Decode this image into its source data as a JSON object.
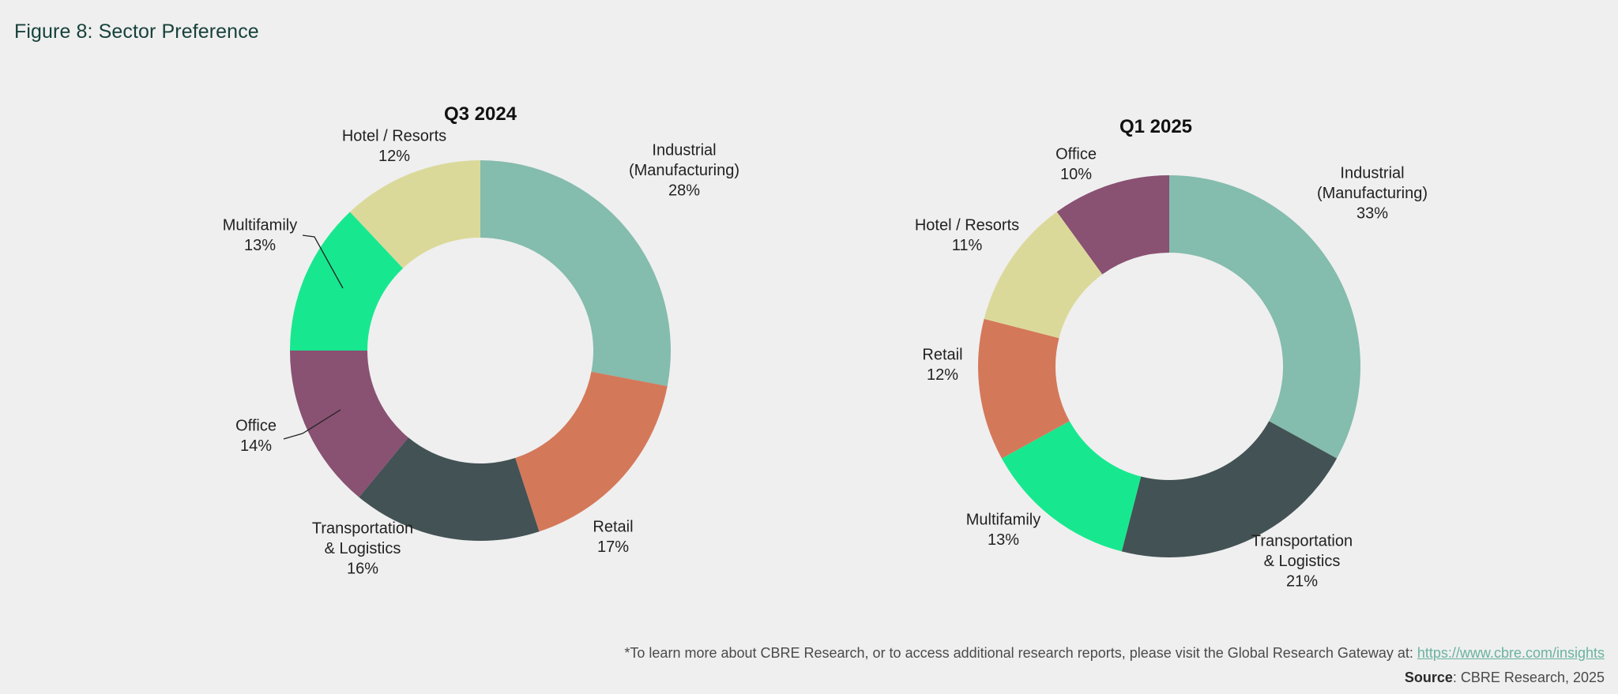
{
  "figure_title": "Figure 8: Sector Preference",
  "colors": {
    "industrial": "#84bcad",
    "retail": "#d4785a",
    "transportation": "#435254",
    "office": "#895172",
    "multifamily": "#17e88f",
    "hotel": "#dbd99a"
  },
  "chart_data": [
    {
      "type": "pie",
      "variant": "donut",
      "title": "Q3 2024",
      "slices": [
        {
          "label": "Industrial (Manufacturing)",
          "lines": [
            "Industrial",
            "(Manufacturing)"
          ],
          "value": 28,
          "pct_label": "28%",
          "color_key": "industrial"
        },
        {
          "label": "Retail",
          "lines": [
            "Retail"
          ],
          "value": 17,
          "pct_label": "17%",
          "color_key": "retail"
        },
        {
          "label": "Transportation & Logistics",
          "lines": [
            "Transportation",
            "& Logistics"
          ],
          "value": 16,
          "pct_label": "16%",
          "color_key": "transportation"
        },
        {
          "label": "Office",
          "lines": [
            "Office"
          ],
          "value": 14,
          "pct_label": "14%",
          "color_key": "office"
        },
        {
          "label": "Multifamily",
          "lines": [
            "Multifamily"
          ],
          "value": 13,
          "pct_label": "13%",
          "color_key": "multifamily"
        },
        {
          "label": "Hotel / Resorts",
          "lines": [
            "Hotel / Resorts"
          ],
          "value": 12,
          "pct_label": "12%",
          "color_key": "hotel"
        }
      ]
    },
    {
      "type": "pie",
      "variant": "donut",
      "title": "Q1 2025",
      "slices": [
        {
          "label": "Industrial (Manufacturing)",
          "lines": [
            "Industrial",
            "(Manufacturing)"
          ],
          "value": 33,
          "pct_label": "33%",
          "color_key": "industrial"
        },
        {
          "label": "Transportation & Logistics",
          "lines": [
            "Transportation",
            "& Logistics"
          ],
          "value": 21,
          "pct_label": "21%",
          "color_key": "transportation"
        },
        {
          "label": "Multifamily",
          "lines": [
            "Multifamily"
          ],
          "value": 13,
          "pct_label": "13%",
          "color_key": "multifamily"
        },
        {
          "label": "Retail",
          "lines": [
            "Retail"
          ],
          "value": 12,
          "pct_label": "12%",
          "color_key": "retail"
        },
        {
          "label": "Hotel / Resorts",
          "lines": [
            "Hotel / Resorts"
          ],
          "value": 11,
          "pct_label": "11%",
          "color_key": "hotel"
        },
        {
          "label": "Office",
          "lines": [
            "Office"
          ],
          "value": 10,
          "pct_label": "10%",
          "color_key": "office"
        }
      ]
    }
  ],
  "footnote": {
    "text": "*To learn more about CBRE Research, or to access additional research reports, please visit the Global Research Gateway at: ",
    "link_text": "https://www.cbre.com/insights"
  },
  "source": {
    "label": "Source",
    "text": ": CBRE Research, 2025"
  }
}
